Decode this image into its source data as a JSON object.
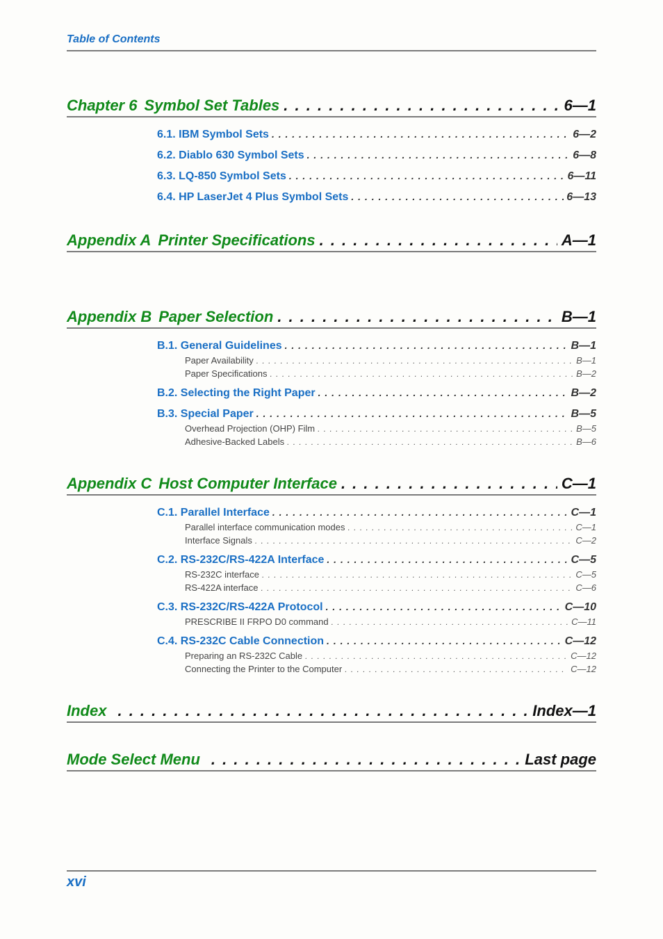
{
  "header": "Table of Contents",
  "footer_page": "xvi",
  "colors": {
    "green": "#118a1a",
    "blue": "#1a6fc4",
    "black": "#111111",
    "rule": "#7a7a7a"
  },
  "sections": [
    {
      "prefix": "Chapter 6",
      "title": "Symbol Set Tables",
      "page": "6—1",
      "subs": [
        {
          "title": "6.1. IBM Symbol Sets",
          "page": "6—2",
          "subs": []
        },
        {
          "title": "6.2. Diablo 630 Symbol Sets",
          "page": "6—8",
          "subs": []
        },
        {
          "title": "6.3. LQ-850 Symbol Sets",
          "page": "6—11",
          "subs": []
        },
        {
          "title": "6.4. HP LaserJet 4 Plus Symbol Sets",
          "page": "6—13",
          "subs": []
        }
      ]
    },
    {
      "prefix": "Appendix A",
      "title": "Printer Specifications",
      "page": "A—1",
      "subs": [],
      "extra_gap": true
    },
    {
      "prefix": "Appendix B",
      "title": "Paper Selection",
      "page": "B—1",
      "subs": [
        {
          "title": "B.1. General Guidelines",
          "page": "B—1",
          "subs": [
            {
              "title": "Paper Availability",
              "page": "B—1"
            },
            {
              "title": "Paper Specifications",
              "page": "B—2"
            }
          ]
        },
        {
          "title": "B.2. Selecting the Right Paper",
          "page": "B—2",
          "subs": []
        },
        {
          "title": "B.3. Special Paper",
          "page": "B—5",
          "subs": [
            {
              "title": "Overhead Projection (OHP) Film",
              "page": "B—5"
            },
            {
              "title": "Adhesive-Backed Labels",
              "page": "B—6"
            }
          ]
        }
      ]
    },
    {
      "prefix": "Appendix C",
      "title": "Host Computer Interface",
      "page": "C—1",
      "subs": [
        {
          "title": "C.1. Parallel Interface",
          "page": "C—1",
          "subs": [
            {
              "title": "Parallel interface communication modes",
              "page": "C—1"
            },
            {
              "title": "Interface Signals",
              "page": "C—2"
            }
          ]
        },
        {
          "title": "C.2. RS-232C/RS-422A Interface",
          "page": "C—5",
          "subs": [
            {
              "title": "RS-232C interface",
              "page": "C—5"
            },
            {
              "title": "RS-422A interface",
              "page": "C—6"
            }
          ]
        },
        {
          "title": "C.3. RS-232C/RS-422A Protocol",
          "page": "C—10",
          "subs": [
            {
              "title": "PRESCRIBE II FRPO D0 command",
              "page": "C—11"
            }
          ]
        },
        {
          "title": "C.4. RS-232C Cable Connection",
          "page": "C—12",
          "subs": [
            {
              "title": "Preparing an RS-232C Cable",
              "page": "C—12"
            },
            {
              "title": "Connecting the Printer to the Computer",
              "page": "C—12"
            }
          ]
        }
      ]
    },
    {
      "prefix": "Index",
      "title": "",
      "page": "Index—1",
      "subs": []
    },
    {
      "prefix": "Mode Select Menu",
      "title": "",
      "page": "Last page",
      "subs": []
    }
  ]
}
